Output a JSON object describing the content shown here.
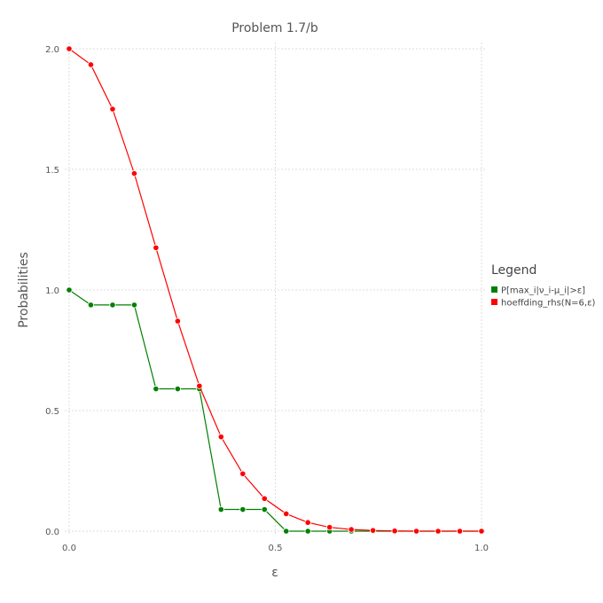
{
  "chart_data": {
    "type": "line",
    "title": "Problem 1.7/b",
    "xlabel": "ε",
    "ylabel": "Probabilities",
    "xlim": [
      0,
      1
    ],
    "ylim": [
      0,
      2
    ],
    "xticks": [
      "0.0",
      "0.5",
      "1.0"
    ],
    "yticks": [
      "0.0",
      "0.5",
      "1.0",
      "1.5",
      "2.0"
    ],
    "grid": true,
    "legend": {
      "title": "Legend",
      "position": "right"
    },
    "series": [
      {
        "name": "P[max_i|ν_i-μ_i|>ε]",
        "color": "#008000",
        "x": [
          0.0,
          0.0526,
          0.1053,
          0.1579,
          0.2105,
          0.2632,
          0.3158,
          0.3684,
          0.4211,
          0.4737,
          0.5263,
          0.5789,
          0.6316,
          0.6842,
          0.7368,
          0.7895,
          0.8421,
          0.8947,
          0.9474,
          1.0
        ],
        "y": [
          1.0,
          0.938,
          0.938,
          0.938,
          0.59,
          0.59,
          0.59,
          0.09,
          0.09,
          0.09,
          0.0,
          0.0,
          0.0,
          0.0,
          0.0,
          0.0,
          0.0,
          0.0,
          0.0,
          0.0
        ]
      },
      {
        "name": "hoeffding_rhs(N=6,ε)",
        "color": "#ff0000",
        "x": [
          0.0,
          0.0526,
          0.1053,
          0.1579,
          0.2105,
          0.2632,
          0.3158,
          0.3684,
          0.4211,
          0.4737,
          0.5263,
          0.5789,
          0.6316,
          0.6842,
          0.7368,
          0.7895,
          0.8421,
          0.8947,
          0.9474,
          1.0
        ],
        "y": [
          2.0,
          1.934,
          1.75,
          1.483,
          1.175,
          0.871,
          0.602,
          0.391,
          0.238,
          0.135,
          0.072,
          0.036,
          0.016,
          0.007,
          0.003,
          0.001,
          0.0,
          0.0,
          0.0,
          0.0
        ]
      }
    ]
  }
}
